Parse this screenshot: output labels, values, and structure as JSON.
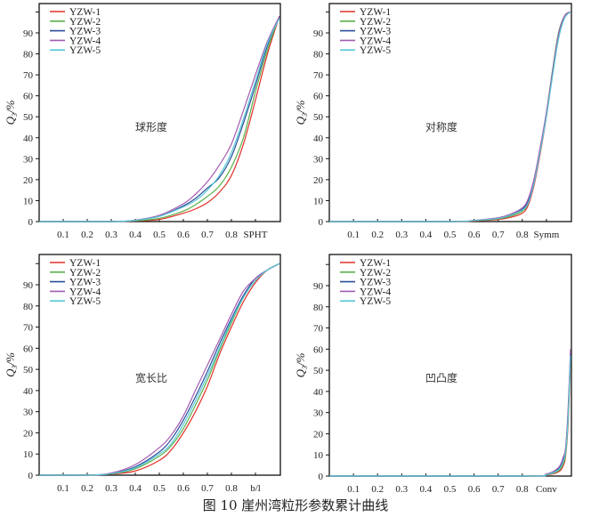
{
  "caption": "图 10   崖州湾粒形参数累计曲线",
  "chart_data": [
    {
      "type": "line",
      "annotation": "球形度",
      "xlabel": "SPHT",
      "ylabel": {
        "main": "Q",
        "sub": "3",
        "unit": "/%"
      },
      "xlim": [
        0,
        1
      ],
      "ylim": [
        0,
        103
      ],
      "xticks": [
        "0.1",
        "0.2",
        "0.3",
        "0.4",
        "0.5",
        "0.6",
        "0.7",
        "0.8"
      ],
      "yticks": [
        "0",
        "10",
        "20",
        "30",
        "40",
        "50",
        "60",
        "70",
        "80",
        "90"
      ],
      "legend": "top-left",
      "series": [
        {
          "name": "YZW-1",
          "color": "#e0302a",
          "x": [
            0,
            0.3,
            0.4,
            0.5,
            0.6,
            0.65,
            0.7,
            0.75,
            0.8,
            0.85,
            0.9,
            0.95,
            1.0
          ],
          "y": [
            0,
            0,
            0.3,
            1,
            4,
            6,
            9,
            14,
            22,
            37,
            58,
            80,
            98
          ]
        },
        {
          "name": "YZW-2",
          "color": "#5bb04a",
          "x": [
            0,
            0.3,
            0.4,
            0.5,
            0.6,
            0.65,
            0.7,
            0.75,
            0.8,
            0.85,
            0.9,
            0.95,
            1.0
          ],
          "y": [
            0,
            0,
            0.4,
            1.5,
            5,
            8,
            12,
            17,
            26,
            40,
            62,
            82,
            98
          ]
        },
        {
          "name": "YZW-3",
          "color": "#2a4e9a",
          "x": [
            0,
            0.3,
            0.4,
            0.5,
            0.6,
            0.65,
            0.7,
            0.75,
            0.8,
            0.85,
            0.9,
            0.95,
            1.0
          ],
          "y": [
            0,
            0,
            0.6,
            2.5,
            7.5,
            11,
            16,
            21,
            31,
            47,
            65,
            84,
            98
          ]
        },
        {
          "name": "YZW-4",
          "color": "#a35bb0",
          "x": [
            0,
            0.3,
            0.4,
            0.5,
            0.6,
            0.65,
            0.7,
            0.75,
            0.8,
            0.85,
            0.9,
            0.95,
            1.0
          ],
          "y": [
            0,
            0,
            0.7,
            3,
            8.5,
            13,
            19,
            27,
            37,
            53,
            70,
            86,
            98
          ]
        },
        {
          "name": "YZW-5",
          "color": "#58c8d8",
          "x": [
            0,
            0.3,
            0.4,
            0.5,
            0.6,
            0.65,
            0.7,
            0.75,
            0.8,
            0.85,
            0.9,
            0.95,
            1.0
          ],
          "y": [
            0,
            0,
            0.6,
            2.5,
            7,
            10,
            15,
            22,
            33,
            49,
            67,
            85,
            97
          ]
        }
      ]
    },
    {
      "type": "line",
      "annotation": "对称度",
      "xlabel": "Symm",
      "ylabel": {
        "main": "Q",
        "sub": "3",
        "unit": "/%"
      },
      "xlim": [
        0,
        1
      ],
      "ylim": [
        0,
        103
      ],
      "xticks": [
        "0.1",
        "0.2",
        "0.3",
        "0.4",
        "0.5",
        "0.6",
        "0.7",
        "0.8"
      ],
      "yticks": [
        "0",
        "10",
        "20",
        "30",
        "40",
        "50",
        "60",
        "70",
        "80",
        "90"
      ],
      "legend": "top-left",
      "series": [
        {
          "name": "YZW-1",
          "color": "#e0302a",
          "x": [
            0,
            0.5,
            0.6,
            0.7,
            0.75,
            0.8,
            0.825,
            0.85,
            0.875,
            0.9,
            0.925,
            0.95,
            0.975,
            1.0
          ],
          "y": [
            0,
            0,
            0.3,
            1,
            2,
            4,
            8,
            18,
            33,
            50,
            70,
            88,
            98,
            100
          ]
        },
        {
          "name": "YZW-2",
          "color": "#5bb04a",
          "x": [
            0,
            0.5,
            0.6,
            0.7,
            0.75,
            0.8,
            0.825,
            0.85,
            0.875,
            0.9,
            0.925,
            0.95,
            0.975,
            1.0
          ],
          "y": [
            0,
            0,
            0.4,
            1.3,
            2.5,
            5,
            9,
            20,
            35,
            52,
            72,
            90,
            98,
            100
          ]
        },
        {
          "name": "YZW-3",
          "color": "#2a4e9a",
          "x": [
            0,
            0.5,
            0.6,
            0.7,
            0.75,
            0.8,
            0.825,
            0.85,
            0.875,
            0.9,
            0.925,
            0.95,
            0.975,
            1.0
          ],
          "y": [
            0,
            0,
            0.5,
            1.5,
            3,
            6,
            10,
            20,
            35,
            51,
            71,
            89,
            98,
            100
          ]
        },
        {
          "name": "YZW-4",
          "color": "#a35bb0",
          "x": [
            0,
            0.5,
            0.6,
            0.7,
            0.75,
            0.8,
            0.825,
            0.85,
            0.875,
            0.9,
            0.925,
            0.95,
            0.975,
            1.0
          ],
          "y": [
            0,
            0,
            0.6,
            1.8,
            3.5,
            6.5,
            11,
            21,
            36,
            52,
            71,
            89,
            98,
            100
          ]
        },
        {
          "name": "YZW-5",
          "color": "#58c8d8",
          "x": [
            0,
            0.5,
            0.6,
            0.7,
            0.75,
            0.8,
            0.825,
            0.85,
            0.875,
            0.9,
            0.925,
            0.95,
            0.975,
            1.0
          ],
          "y": [
            0,
            0,
            0.5,
            1.5,
            3,
            5.5,
            9,
            19,
            34,
            50,
            69,
            87,
            97,
            100
          ]
        }
      ]
    },
    {
      "type": "line",
      "annotation": "宽长比",
      "xlabel": "b/l",
      "ylabel": {
        "main": "Q",
        "sub": "3",
        "unit": "/%"
      },
      "xlim": [
        0,
        1
      ],
      "ylim": [
        0,
        103
      ],
      "xticks": [
        "0.1",
        "0.2",
        "0.3",
        "0.4",
        "0.5",
        "0.6",
        "0.7",
        "0.8"
      ],
      "yticks": [
        "0",
        "10",
        "20",
        "30",
        "40",
        "50",
        "60",
        "70",
        "80",
        "90"
      ],
      "legend": "top-left",
      "series": [
        {
          "name": "YZW-1",
          "color": "#e0302a",
          "x": [
            0,
            0.2,
            0.3,
            0.4,
            0.5,
            0.55,
            0.6,
            0.65,
            0.7,
            0.75,
            0.8,
            0.85,
            0.9,
            0.95,
            1.0
          ],
          "y": [
            0,
            0,
            0.5,
            2,
            7,
            12,
            20,
            30,
            42,
            57,
            70,
            82,
            91,
            97,
            100
          ]
        },
        {
          "name": "YZW-2",
          "color": "#5bb04a",
          "x": [
            0,
            0.2,
            0.3,
            0.4,
            0.5,
            0.55,
            0.6,
            0.65,
            0.7,
            0.75,
            0.8,
            0.85,
            0.9,
            0.95,
            1.0
          ],
          "y": [
            0,
            0,
            0.6,
            3,
            9,
            14,
            22,
            33,
            45,
            59,
            72,
            84,
            92,
            97,
            100
          ]
        },
        {
          "name": "YZW-3",
          "color": "#2a4e9a",
          "x": [
            0,
            0.2,
            0.3,
            0.4,
            0.5,
            0.55,
            0.6,
            0.65,
            0.7,
            0.75,
            0.8,
            0.85,
            0.9,
            0.95,
            1.0
          ],
          "y": [
            0,
            0,
            0.8,
            4,
            11,
            17,
            26,
            37,
            49,
            62,
            74,
            85,
            93,
            97,
            100
          ]
        },
        {
          "name": "YZW-4",
          "color": "#a35bb0",
          "x": [
            0,
            0.2,
            0.3,
            0.4,
            0.5,
            0.55,
            0.6,
            0.65,
            0.7,
            0.75,
            0.8,
            0.85,
            0.9,
            0.95,
            1.0
          ],
          "y": [
            0,
            0,
            1,
            5,
            13,
            19,
            28,
            40,
            52,
            64,
            76,
            87,
            93,
            97,
            100
          ]
        },
        {
          "name": "YZW-5",
          "color": "#58c8d8",
          "x": [
            0,
            0.2,
            0.3,
            0.4,
            0.5,
            0.55,
            0.6,
            0.65,
            0.7,
            0.75,
            0.8,
            0.85,
            0.9,
            0.95,
            1.0
          ],
          "y": [
            0,
            0,
            0.7,
            3.5,
            10,
            15,
            24,
            35,
            47,
            60,
            73,
            84,
            92,
            97,
            100
          ]
        }
      ]
    },
    {
      "type": "line",
      "annotation": "凹凸度",
      "xlabel": "Conv",
      "ylabel": {
        "main": "Q",
        "sub": "3",
        "unit": "/%"
      },
      "xlim": [
        0,
        1
      ],
      "ylim": [
        0,
        103
      ],
      "xticks": [
        "0.1",
        "0.2",
        "0.3",
        "0.4",
        "0.5",
        "0.6",
        "0.7",
        "0.8"
      ],
      "yticks": [
        "0",
        "10",
        "20",
        "30",
        "40",
        "50",
        "60",
        "70",
        "80",
        "90"
      ],
      "legend": "top-left",
      "series": [
        {
          "name": "YZW-1",
          "color": "#e0302a",
          "x": [
            0,
            0.8,
            0.9,
            0.95,
            0.97,
            0.98,
            0.99,
            1.0
          ],
          "y": [
            0,
            0,
            0.5,
            2,
            5,
            10,
            25,
            55
          ]
        },
        {
          "name": "YZW-2",
          "color": "#5bb04a",
          "x": [
            0,
            0.8,
            0.9,
            0.95,
            0.97,
            0.98,
            0.99,
            1.0
          ],
          "y": [
            0,
            0,
            0.6,
            2.5,
            6,
            11,
            27,
            57
          ]
        },
        {
          "name": "YZW-3",
          "color": "#2a4e9a",
          "x": [
            0,
            0.8,
            0.9,
            0.95,
            0.97,
            0.98,
            0.99,
            1.0
          ],
          "y": [
            0,
            0,
            0.8,
            3.5,
            8,
            13,
            30,
            58
          ]
        },
        {
          "name": "YZW-4",
          "color": "#a35bb0",
          "x": [
            0,
            0.8,
            0.9,
            0.95,
            0.97,
            0.98,
            0.99,
            1.0
          ],
          "y": [
            0,
            0,
            1,
            4,
            9,
            14,
            32,
            60
          ]
        },
        {
          "name": "YZW-5",
          "color": "#58c8d8",
          "x": [
            0,
            0.8,
            0.9,
            0.95,
            0.97,
            0.98,
            0.99,
            1.0
          ],
          "y": [
            0,
            0,
            0.7,
            3,
            7,
            12,
            28,
            57
          ]
        }
      ]
    }
  ]
}
